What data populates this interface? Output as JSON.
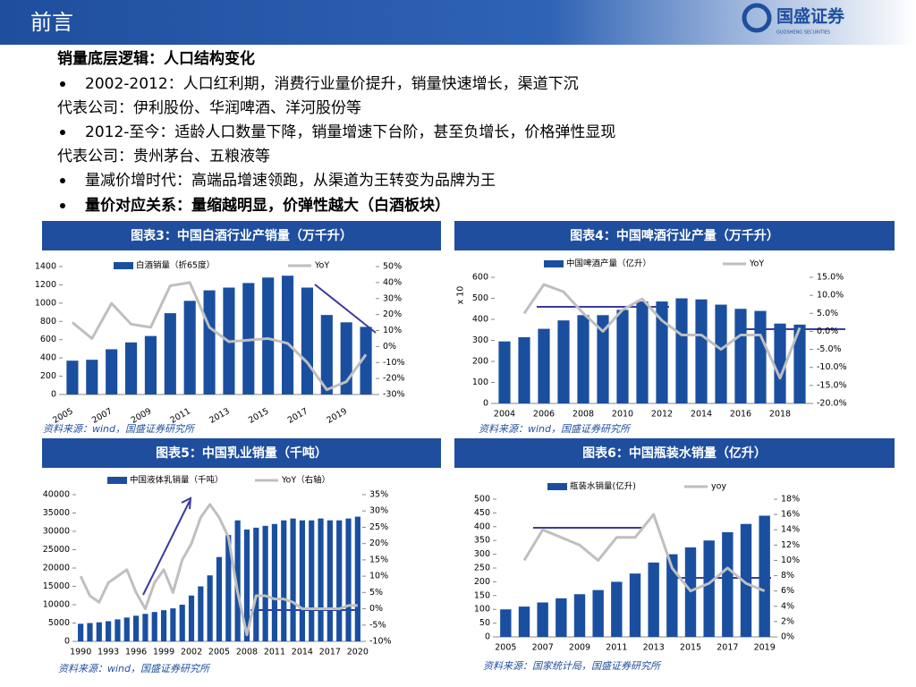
{
  "header": {
    "title": "前言",
    "logo": "国盛证券",
    "logo_sub": "GUOSHENG SECURITIES"
  },
  "bullets": [
    "销量底层逻辑：人口结构变化",
    "2002-2012：人口红利期，消费行业量价提升，销量快速增长，渠道下沉",
    "代表公司：伊利股份、华润啤酒、洋河股份等",
    "2012-至今：适龄人口数量下降，销量增速下台阶，甚至负增长，价格弹性显现",
    "代表公司：贵州茅台、五粮液等",
    "量减价增时代：高端品增速领跑，从渠道为王转变为品牌为王",
    "量价对应关系：量缩越明显，价弹性越大（白酒板块）"
  ],
  "chart_data": [
    {
      "type": "combo",
      "title": "图表3：中国白酒行业产销量（万千升）",
      "source": "资料来源：wind，国盛证券研究所",
      "categories": [
        "2005",
        null,
        "2007",
        null,
        "2009",
        null,
        "2011",
        null,
        "2013",
        null,
        "2015",
        null,
        "2017",
        null,
        "2019",
        null
      ],
      "series": [
        {
          "name": "白酒销量（折65度）",
          "color": "#1a4fa0",
          "type": "bar",
          "values": [
            370,
            380,
            495,
            570,
            640,
            890,
            1025,
            1140,
            1170,
            1220,
            1280,
            1300,
            1170,
            870,
            790,
            740
          ]
        },
        {
          "name": "YoY",
          "color": "#bfbfbf",
          "type": "line",
          "axis": "y2",
          "values": [
            15,
            5,
            27,
            14,
            12,
            38,
            40,
            12,
            3,
            4,
            5,
            2,
            -10,
            -27,
            -22,
            -5
          ]
        }
      ],
      "ylim": [
        0,
        1400
      ],
      "yticks": [
        0,
        200,
        400,
        600,
        800,
        1000,
        1200,
        1400
      ],
      "y2lim": [
        -30,
        50
      ],
      "y2ticks": [
        {
          "value": -30,
          "label": "-30%"
        },
        {
          "value": -20,
          "label": "-20%"
        },
        {
          "value": -10,
          "label": "-10%"
        },
        {
          "value": 0,
          "label": "0%"
        },
        {
          "value": 10,
          "label": "10%"
        },
        {
          "value": 20,
          "label": "20%"
        },
        {
          "value": 30,
          "label": "30%"
        },
        {
          "value": 40,
          "label": "40%"
        },
        {
          "value": 50,
          "label": "50%"
        }
      ]
    },
    {
      "type": "combo",
      "title": "图表4：中国啤酒行业产量（万千升）",
      "source": "资料来源：wind，国盛证券研究所",
      "ylabel": "x 10",
      "categories": [
        "2004",
        null,
        "2006",
        null,
        "2008",
        null,
        "2010",
        null,
        "2012",
        null,
        "2014",
        null,
        "2016",
        null,
        "2018",
        null
      ],
      "series": [
        {
          "name": "中国啤酒产量（亿升）",
          "color": "#1a4fa0",
          "type": "bar",
          "values": [
            295,
            315,
            355,
            395,
            420,
            420,
            445,
            485,
            485,
            500,
            495,
            470,
            450,
            440,
            380,
            375
          ]
        },
        {
          "name": "YoY",
          "color": "#bfbfbf",
          "type": "line",
          "axis": "y2",
          "values": [
            null,
            5,
            13,
            11,
            5,
            0,
            6,
            9,
            3,
            -1,
            -1,
            -5,
            -1,
            -1,
            -13,
            1
          ]
        }
      ],
      "ylim": [
        0,
        600
      ],
      "yticks": [
        0,
        100,
        200,
        300,
        400,
        500,
        600
      ],
      "y2lim": [
        -20,
        15
      ],
      "y2ticks": [
        {
          "value": -20,
          "label": "-20.0%"
        },
        {
          "value": -15,
          "label": "-15.0%"
        },
        {
          "value": -10,
          "label": "-10.0%"
        },
        {
          "value": -5,
          "label": "-5.0%"
        },
        {
          "value": 0,
          "label": "0.0%"
        },
        {
          "value": 5,
          "label": "5.0%"
        },
        {
          "value": 10,
          "label": "10.0%"
        },
        {
          "value": 15,
          "label": "15.0%"
        }
      ]
    },
    {
      "type": "combo",
      "title": "图表5：中国乳业销量（千吨）",
      "source": "资料来源：wind，国盛证券研究所",
      "categories": [
        "1990",
        null,
        null,
        "1993",
        null,
        null,
        "1996",
        null,
        null,
        "1999",
        null,
        null,
        "2002",
        null,
        null,
        "2005",
        null,
        null,
        "2008",
        null,
        null,
        "2011",
        null,
        null,
        "2014",
        null,
        null,
        "2017",
        null,
        null,
        "2020"
      ],
      "series": [
        {
          "name": "中国液体乳销量（千吨）",
          "color": "#1a4fa0",
          "type": "bar",
          "values": [
            4800,
            5000,
            5200,
            5500,
            6000,
            6500,
            7000,
            7500,
            8000,
            8500,
            9000,
            10000,
            12500,
            15000,
            18000,
            23000,
            29000,
            33000,
            30500,
            31000,
            31500,
            32000,
            33000,
            33500,
            33000,
            33000,
            33500,
            33000,
            33000,
            33500,
            34000
          ]
        },
        {
          "name": "YoY（右轴）",
          "color": "#bfbfbf",
          "type": "line",
          "axis": "y2",
          "values": [
            10,
            4,
            2,
            8,
            10,
            12,
            5,
            0,
            8,
            12,
            5,
            15,
            20,
            28,
            32,
            28,
            22,
            5,
            -8,
            4,
            4,
            3,
            3,
            2,
            0,
            0,
            0,
            0,
            0,
            1,
            1
          ]
        }
      ],
      "ylim": [
        0,
        40000
      ],
      "yticks": [
        0,
        5000,
        10000,
        15000,
        20000,
        25000,
        30000,
        35000,
        40000
      ],
      "y2lim": [
        -10,
        35
      ],
      "y2ticks": [
        {
          "value": -10,
          "label": "-10%"
        },
        {
          "value": -5,
          "label": "-5%"
        },
        {
          "value": 0,
          "label": "0%"
        },
        {
          "value": 5,
          "label": "5%"
        },
        {
          "value": 10,
          "label": "10%"
        },
        {
          "value": 15,
          "label": "15%"
        },
        {
          "value": 20,
          "label": "20%"
        },
        {
          "value": 25,
          "label": "25%"
        },
        {
          "value": 30,
          "label": "30%"
        },
        {
          "value": 35,
          "label": "35%"
        }
      ]
    },
    {
      "type": "combo",
      "title": "图表6：中国瓶装水销量（亿升）",
      "source": "资料来源：国家统计局，国盛证券研究所",
      "categories": [
        "2005",
        null,
        "2007",
        null,
        "2009",
        null,
        "2011",
        null,
        "2013",
        null,
        "2015",
        null,
        "2017",
        null,
        "2019"
      ],
      "series": [
        {
          "name": "瓶装水销量(亿升)",
          "color": "#1a4fa0",
          "type": "bar",
          "values": [
            100,
            110,
            125,
            140,
            155,
            170,
            200,
            230,
            270,
            300,
            325,
            350,
            380,
            410,
            440
          ]
        },
        {
          "name": "yoy",
          "color": "#bfbfbf",
          "type": "line",
          "axis": "y2",
          "values": [
            null,
            10,
            14,
            13,
            12,
            10,
            13,
            13,
            16,
            9,
            6,
            7,
            9,
            7,
            6
          ]
        }
      ],
      "ylim": [
        0,
        500
      ],
      "yticks": [
        0,
        50,
        100,
        150,
        200,
        250,
        300,
        350,
        400,
        450,
        500
      ],
      "y2lim": [
        0,
        18
      ],
      "y2ticks": [
        {
          "value": 0,
          "label": "0%"
        },
        {
          "value": 2,
          "label": "2%"
        },
        {
          "value": 4,
          "label": "4%"
        },
        {
          "value": 6,
          "label": "6%"
        },
        {
          "value": 8,
          "label": "8%"
        },
        {
          "value": 10,
          "label": "10%"
        },
        {
          "value": 12,
          "label": "12%"
        },
        {
          "value": 14,
          "label": "14%"
        },
        {
          "value": 16,
          "label": "16%"
        },
        {
          "value": 18,
          "label": "18%"
        }
      ]
    }
  ]
}
